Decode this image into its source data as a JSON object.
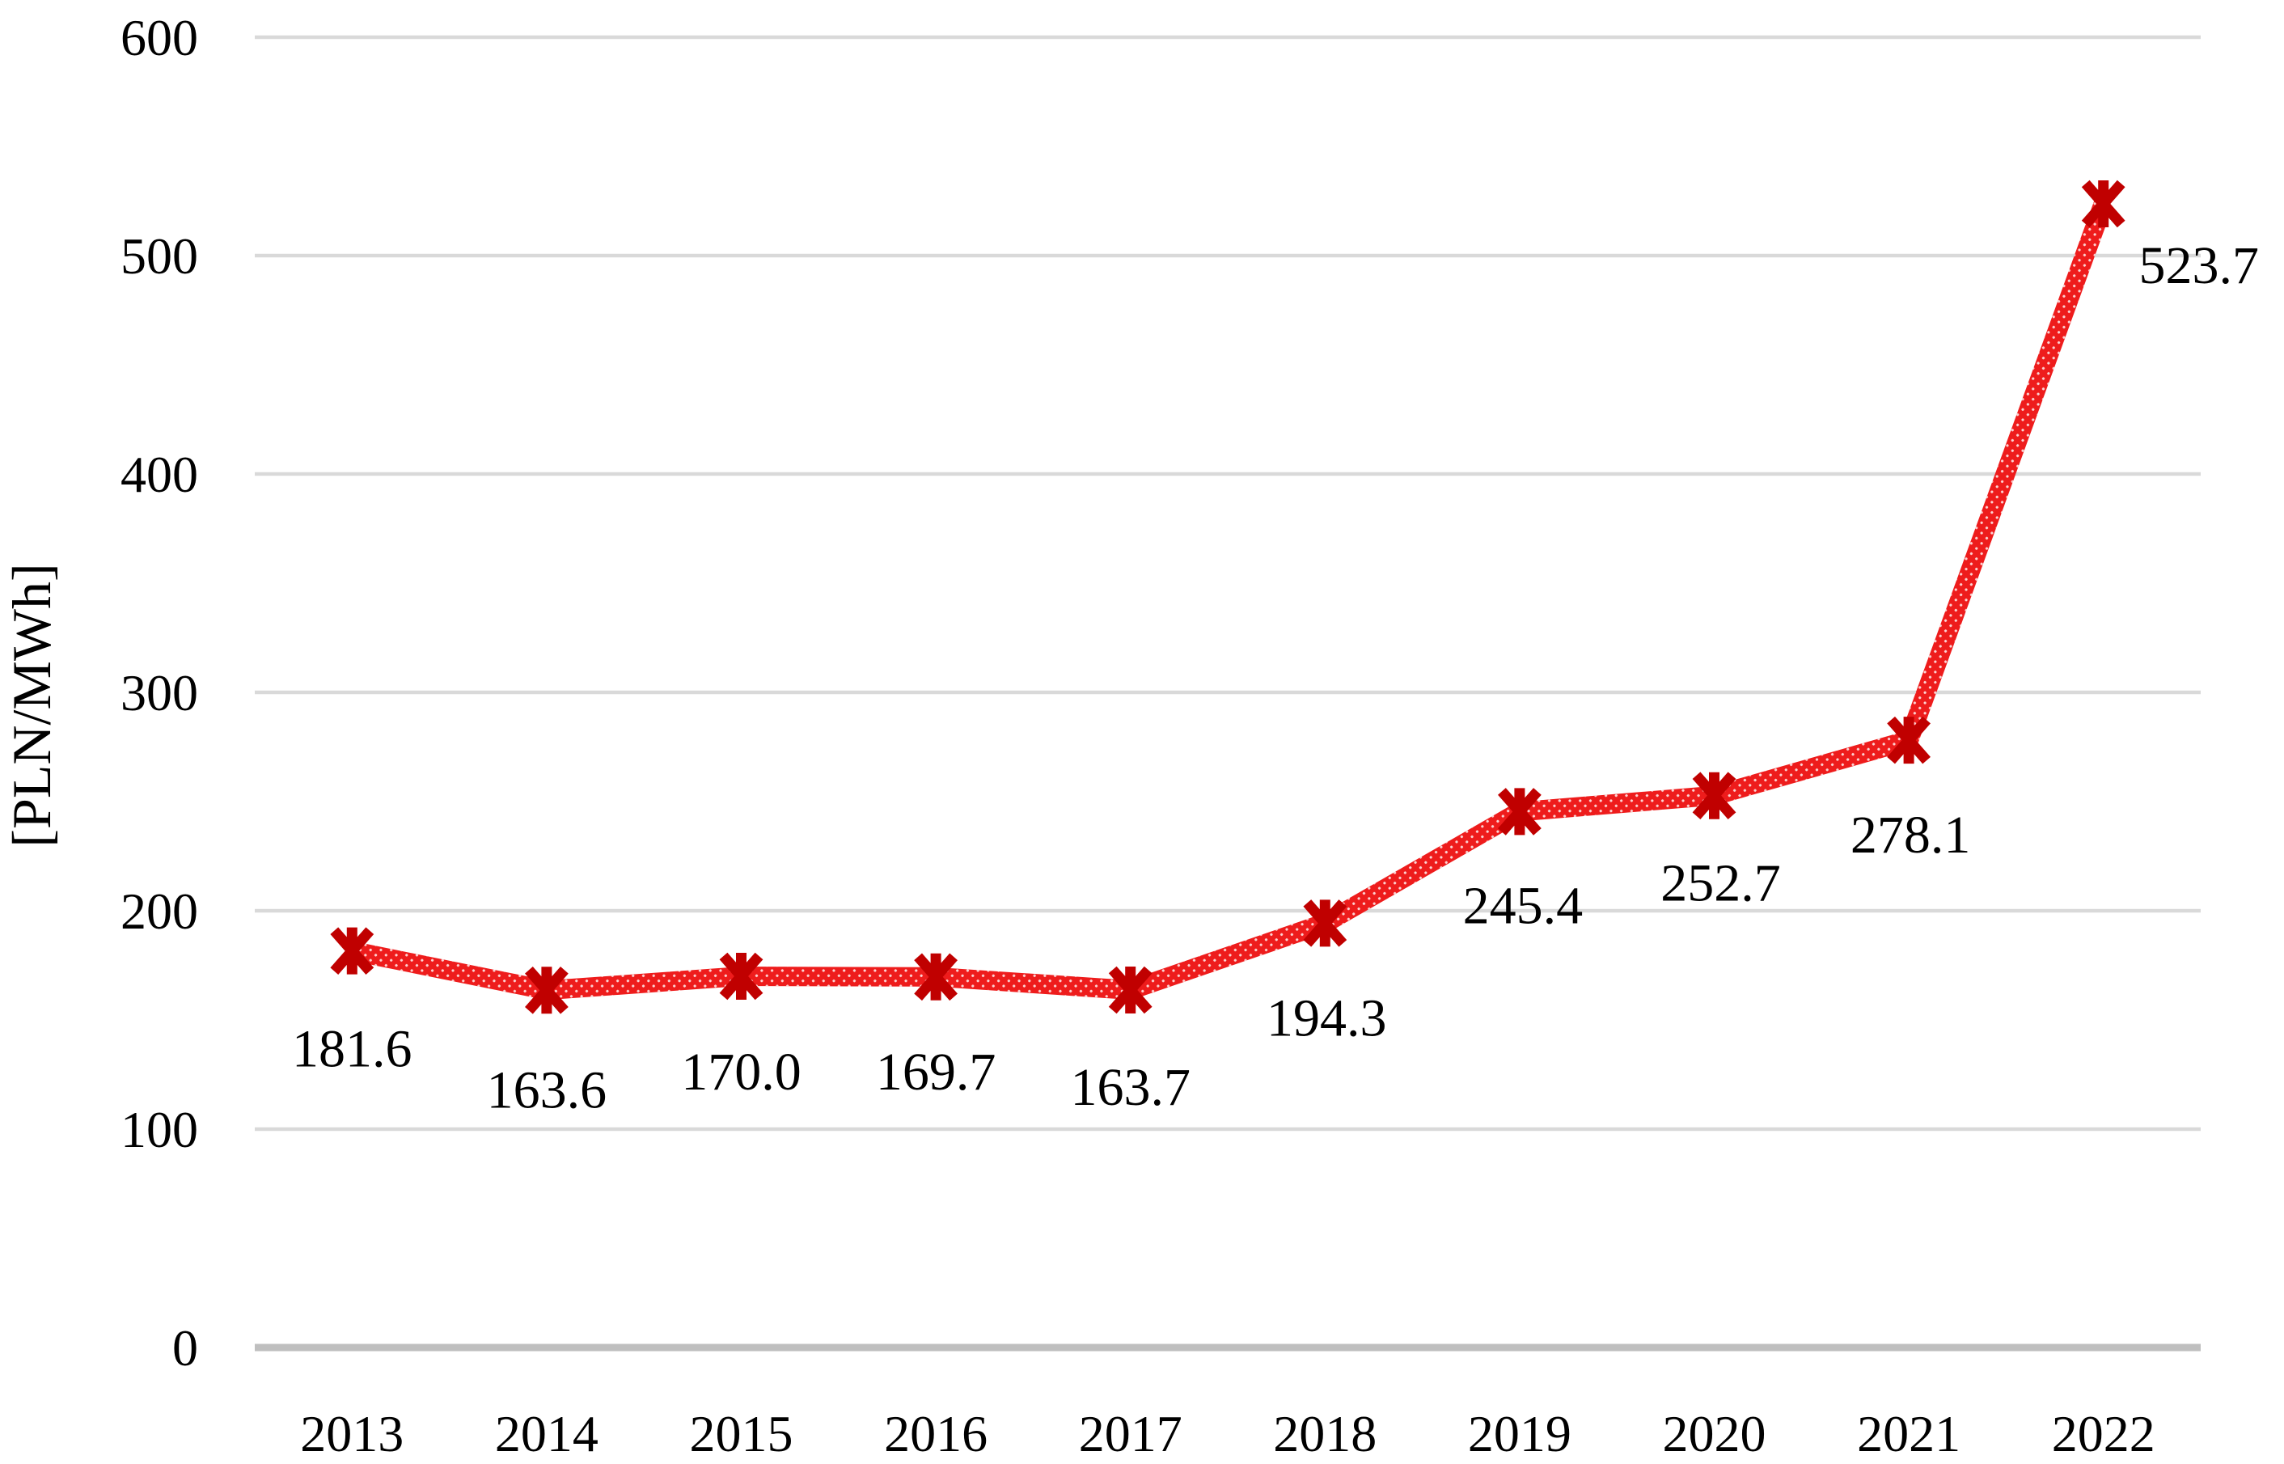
{
  "figure": {
    "background": "#ffffff"
  },
  "chart_data": {
    "type": "line",
    "title": "",
    "xlabel": "",
    "ylabel": "[PLN/MWh]",
    "categories": [
      "2013",
      "2014",
      "2015",
      "2016",
      "2017",
      "2018",
      "2019",
      "2020",
      "2021",
      "2022"
    ],
    "series": [
      {
        "values": [
          181.6,
          163.6,
          170.0,
          169.7,
          163.7,
          194.3,
          245.4,
          252.7,
          278.1,
          523.7
        ],
        "color": "#ee1c1c",
        "marker": "asterisk",
        "marker_color": "#c00000"
      }
    ],
    "data_labels": [
      "181.6",
      "163.6",
      "170.0",
      "169.7",
      "163.7",
      "194.3",
      "245.4",
      "252.7",
      "278.1",
      "523.7"
    ],
    "ylim": [
      0,
      600
    ],
    "yticks": [
      600,
      500,
      400,
      300,
      200,
      100,
      0
    ],
    "grid": "horizontal",
    "gridline_color": "#d9d9d9",
    "axisline_color": "#bfbfbf",
    "text_color": "#000000",
    "legend": "none"
  }
}
